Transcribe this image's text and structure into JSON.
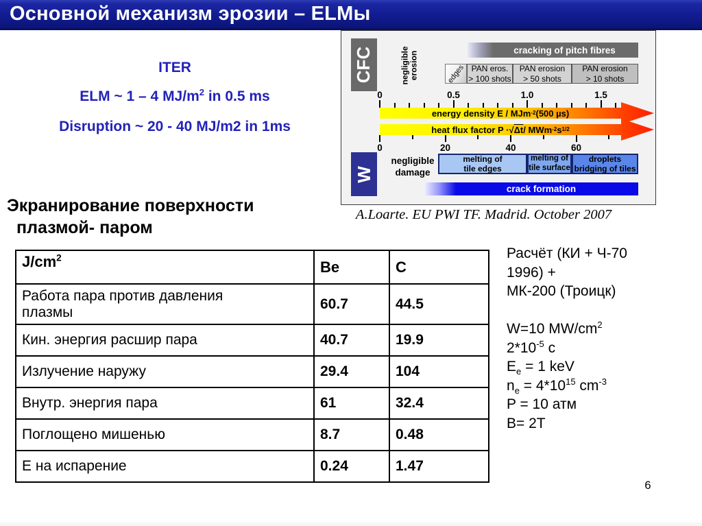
{
  "slide": {
    "title": "Основной механизм эрозии – ELMы",
    "page_number": "6"
  },
  "iter_block": {
    "line1": "ITER",
    "line2": "ELM ~ 1 – 4 MJ/m^{2} in 0.5 ms",
    "line3": "Disruption ~ 20 - 40 MJ/m2 in 1ms"
  },
  "diagram": {
    "cfc_label": "CFC",
    "w_label": "W",
    "negligible_erosion": "negligible\nerosion",
    "cracking_bar": "cracking of pitch fibres",
    "edges_label": "edges",
    "pan_boxes": [
      {
        "line1": "PAN eros.",
        "line2": "> 100 shots"
      },
      {
        "line1": "PAN erosion",
        "line2": "> 50 shots"
      },
      {
        "line1": "PAN erosion",
        "line2": "> 10 shots"
      }
    ],
    "energy_axis": {
      "tick_labels": [
        "0",
        "0.5",
        "1.0",
        "1.5"
      ]
    },
    "energy_arrow_label": "energy density E / MJm^{-2} (500 µs)",
    "heat_arrow_label": "heat flux factor P ·√o{Δt} / MWm^{-2}s^{1/2}",
    "heat_axis": {
      "tick_labels": [
        "0",
        "20",
        "40",
        "60"
      ]
    },
    "negligible_damage": "negligible\ndamage",
    "melt_boxes": [
      {
        "line1": "melting of",
        "line2": "tile edges"
      },
      {
        "line1": "melting of",
        "line2": "tile surface"
      },
      {
        "line1": "droplets",
        "line2": "bridging of tiles"
      }
    ],
    "crack_bar": "crack formation",
    "caption": "A.Loarte. EU PWI TF. Madrid. October 2007"
  },
  "screening": {
    "heading_line1": "Экранирование поверхности",
    "heading_line2": "плазмой- паром"
  },
  "table": {
    "header": {
      "col1": "J/cm^{2}",
      "col2": "Be",
      "col3": "C"
    },
    "rows": [
      {
        "label_line1": "Работа пара против давления",
        "label_line2": "плазмы",
        "be": "60.7",
        "c": "44.5"
      },
      {
        "label": "Кин. энергия расшир пара",
        "be": "40.7",
        "c": "19.9"
      },
      {
        "label": "Излучение наружу",
        "be": "29.4",
        "c": "104"
      },
      {
        "label": "Внутр. энергия пара",
        "be": "61",
        "c": "32.4"
      },
      {
        "label": "Поглощено мишенью",
        "be": "8.7",
        "c": "0.48"
      },
      {
        "label": "Е на испарение",
        "be": "0.24",
        "c": "1.47"
      }
    ]
  },
  "params": {
    "lines": [
      "Расчёт (КИ + Ч-70",
      "1996) +",
      "МК-200 (Троицк)",
      "",
      "W=10 MW/cm^{2}",
      "2*10^{-5} с",
      "E_{e} = 1 keV",
      "n_{e} = 4*10^{15} cm^{-3}",
      "P = 10 атм",
      "B= 2T"
    ]
  },
  "colors": {
    "title_bar_blue": "#121c90",
    "accent_text_blue": "#2222b8",
    "cfc_gray": "#696969",
    "w_navy": "#2c3193",
    "pan_gray_light": "#d3d3d3",
    "pan_gray_dark": "#bfbfbf",
    "melt_light_blue": "#a9c7f3",
    "melt_mid_blue": "#7ea7ee",
    "melt_strong_blue": "#5b86e9",
    "crack_blue": "#0a0ae8",
    "arrow_yellow": "#ffff00",
    "arrow_red": "#ff1e00"
  }
}
